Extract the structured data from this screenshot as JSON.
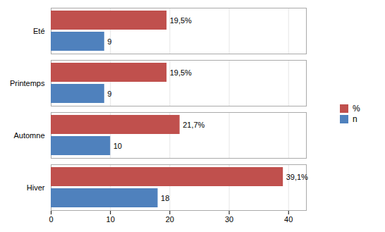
{
  "chart_data": {
    "type": "bar",
    "orientation": "horizontal",
    "categories": [
      "Hiver",
      "Automne",
      "Printemps",
      "Eté"
    ],
    "series": [
      {
        "name": "%",
        "color": "#C0504D",
        "values": [
          39.1,
          21.7,
          19.5,
          19.5
        ],
        "value_labels": [
          "39,1%",
          "21,7%",
          "19,5%",
          "19,5%"
        ]
      },
      {
        "name": "n",
        "color": "#4F81BD",
        "values": [
          18,
          10,
          9,
          9
        ],
        "value_labels": [
          "18",
          "10",
          "9",
          "9"
        ]
      }
    ],
    "xlim": [
      0,
      43
    ],
    "xticks": [
      0,
      10,
      20,
      30,
      40
    ],
    "grid": true,
    "legend": "right",
    "data_labels": true
  }
}
